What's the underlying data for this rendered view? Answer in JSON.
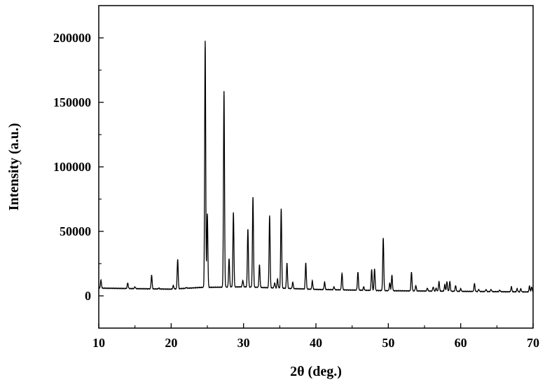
{
  "chart_data": {
    "type": "line",
    "title": "",
    "xlabel": "2θ (deg.)",
    "ylabel": "Intensity (a.u.)",
    "xlim": [
      10,
      70
    ],
    "ylim": [
      -25000,
      225000
    ],
    "x_ticks": [
      10,
      20,
      30,
      40,
      50,
      60,
      70
    ],
    "y_ticks": [
      0,
      50000,
      100000,
      150000,
      200000
    ],
    "x_tick_labels": [
      "10",
      "20",
      "30",
      "40",
      "50",
      "60",
      "70"
    ],
    "y_tick_labels": [
      "0",
      "50000",
      "100000",
      "150000",
      "200000"
    ],
    "grid": false,
    "legend": "none",
    "line_color": "#000000",
    "series": [
      {
        "baseline": [
          [
            10.0,
            6000
          ],
          [
            20.0,
            5200
          ],
          [
            24.0,
            6500
          ],
          [
            30.0,
            7000
          ],
          [
            40.0,
            5000
          ],
          [
            50.0,
            4000
          ],
          [
            60.0,
            3500
          ],
          [
            70.0,
            3000
          ]
        ],
        "peaks": [
          [
            10.3,
            12000
          ],
          [
            14.0,
            10000
          ],
          [
            15.0,
            7000
          ],
          [
            17.3,
            16000
          ],
          [
            18.3,
            6000
          ],
          [
            20.3,
            8000
          ],
          [
            20.9,
            28500
          ],
          [
            22.1,
            6500
          ],
          [
            24.7,
            197500
          ],
          [
            25.0,
            64000
          ],
          [
            27.3,
            158500
          ],
          [
            28.0,
            29000
          ],
          [
            28.6,
            64500
          ],
          [
            29.9,
            12000
          ],
          [
            30.6,
            52000
          ],
          [
            31.3,
            76500
          ],
          [
            32.2,
            24000
          ],
          [
            33.6,
            62500
          ],
          [
            34.3,
            10000
          ],
          [
            34.7,
            13000
          ],
          [
            35.2,
            67500
          ],
          [
            36.0,
            25500
          ],
          [
            36.8,
            10500
          ],
          [
            38.6,
            25500
          ],
          [
            39.5,
            11500
          ],
          [
            41.2,
            10500
          ],
          [
            42.5,
            7000
          ],
          [
            43.6,
            17500
          ],
          [
            45.8,
            18500
          ],
          [
            46.6,
            7000
          ],
          [
            47.7,
            20500
          ],
          [
            48.1,
            21000
          ],
          [
            49.3,
            45000
          ],
          [
            50.2,
            10000
          ],
          [
            50.5,
            16000
          ],
          [
            53.2,
            18500
          ],
          [
            53.8,
            8000
          ],
          [
            55.4,
            6000
          ],
          [
            56.2,
            7000
          ],
          [
            56.6,
            6000
          ],
          [
            57.0,
            11000
          ],
          [
            57.8,
            8500
          ],
          [
            58.1,
            11000
          ],
          [
            58.5,
            11000
          ],
          [
            59.3,
            8000
          ],
          [
            60.0,
            5500
          ],
          [
            61.9,
            9500
          ],
          [
            62.5,
            5000
          ],
          [
            63.5,
            5000
          ],
          [
            64.2,
            5000
          ],
          [
            65.4,
            4500
          ],
          [
            67.0,
            7000
          ],
          [
            67.8,
            5500
          ],
          [
            68.3,
            5500
          ],
          [
            69.5,
            7500
          ],
          [
            69.8,
            7000
          ]
        ]
      }
    ]
  }
}
